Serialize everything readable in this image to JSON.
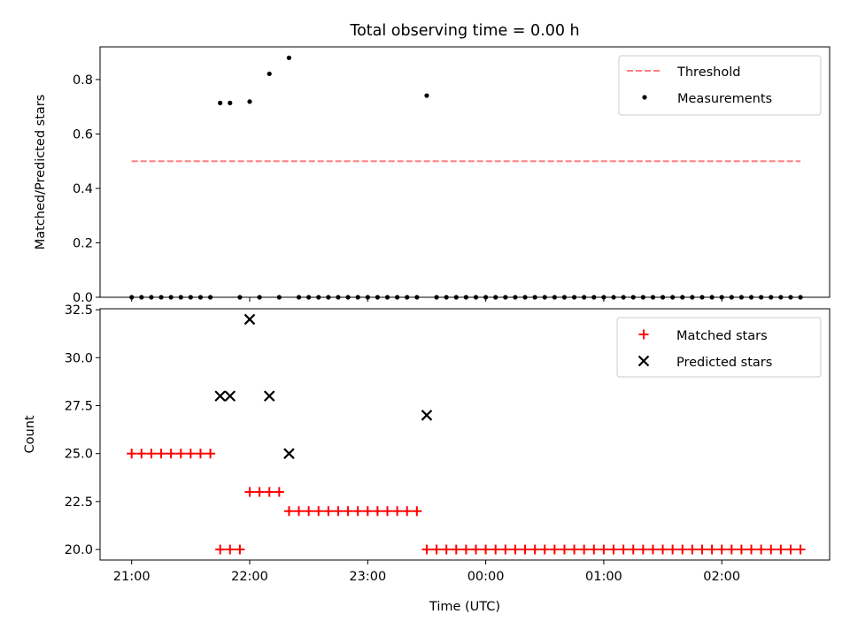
{
  "chart_data": [
    {
      "type": "scatter",
      "title": "Total observing time = 0.00 h",
      "ylabel": "Matched/Predicted stars",
      "xlabel": "",
      "x_unit": "time (UTC)",
      "xlim": [
        "20:52",
        "02:58"
      ],
      "ylim": [
        0,
        0.92
      ],
      "yticks": [
        "0.0",
        "0.2",
        "0.4",
        "0.6",
        "0.8"
      ],
      "xticks": [
        "21:00",
        "22:00",
        "23:00",
        "00:00",
        "01:00",
        "02:00"
      ],
      "legend_position": "upper right",
      "series": [
        {
          "name": "Threshold",
          "kind": "line",
          "style": "dashed",
          "color": "#ff7f7f",
          "x": [
            "21:00",
            "02:40"
          ],
          "y": [
            0.5,
            0.5
          ]
        },
        {
          "name": "Measurements",
          "kind": "scatter",
          "color": "#000000",
          "x": [
            "21:00",
            "21:05",
            "21:10",
            "21:15",
            "21:20",
            "21:25",
            "21:30",
            "21:35",
            "21:40",
            "21:45",
            "21:50",
            "21:55",
            "22:00",
            "22:05",
            "22:10",
            "22:15",
            "22:20",
            "22:25",
            "22:30",
            "22:35",
            "22:40",
            "22:45",
            "22:50",
            "22:55",
            "23:00",
            "23:05",
            "23:10",
            "23:15",
            "23:20",
            "23:25",
            "23:30",
            "23:35",
            "23:40",
            "23:45",
            "23:50",
            "23:55",
            "00:00",
            "00:05",
            "00:10",
            "00:15",
            "00:20",
            "00:25",
            "00:30",
            "00:35",
            "00:40",
            "00:45",
            "00:50",
            "00:55",
            "01:00",
            "01:05",
            "01:10",
            "01:15",
            "01:20",
            "01:25",
            "01:30",
            "01:35",
            "01:40",
            "01:45",
            "01:50",
            "01:55",
            "02:00",
            "02:05",
            "02:10",
            "02:15",
            "02:20",
            "02:25",
            "02:30",
            "02:35",
            "02:40"
          ],
          "y": [
            0,
            0,
            0,
            0,
            0,
            0,
            0,
            0,
            0,
            0.714,
            0.714,
            0,
            0.719,
            0,
            0.821,
            0,
            0.88,
            0,
            0,
            0,
            0,
            0,
            0,
            0,
            0,
            0,
            0,
            0,
            0,
            0,
            0.741,
            0,
            0,
            0,
            0,
            0,
            0,
            0,
            0,
            0,
            0,
            0,
            0,
            0,
            0,
            0,
            0,
            0,
            0,
            0,
            0,
            0,
            0,
            0,
            0,
            0,
            0,
            0,
            0,
            0,
            0,
            0,
            0,
            0,
            0,
            0,
            0,
            0,
            0
          ]
        }
      ]
    },
    {
      "type": "scatter",
      "title": "",
      "ylabel": "Count",
      "xlabel": "Time (UTC)",
      "xlim": [
        "20:52",
        "02:58"
      ],
      "ylim": [
        19.45,
        32.55
      ],
      "yticks": [
        "20.0",
        "22.5",
        "25.0",
        "27.5",
        "30.0",
        "32.5"
      ],
      "xticks": [
        "21:00",
        "22:00",
        "23:00",
        "00:00",
        "01:00",
        "02:00"
      ],
      "legend_position": "upper right",
      "series": [
        {
          "name": "Matched stars",
          "marker": "+",
          "color": "#ff0000",
          "x": [
            "21:00",
            "21:05",
            "21:10",
            "21:15",
            "21:20",
            "21:25",
            "21:30",
            "21:35",
            "21:40",
            "21:45",
            "21:50",
            "21:55",
            "22:00",
            "22:05",
            "22:10",
            "22:15",
            "22:20",
            "22:25",
            "22:30",
            "22:35",
            "22:40",
            "22:45",
            "22:50",
            "22:55",
            "23:00",
            "23:05",
            "23:10",
            "23:15",
            "23:20",
            "23:25",
            "23:30",
            "23:35",
            "23:40",
            "23:45",
            "23:50",
            "23:55",
            "00:00",
            "00:05",
            "00:10",
            "00:15",
            "00:20",
            "00:25",
            "00:30",
            "00:35",
            "00:40",
            "00:45",
            "00:50",
            "00:55",
            "01:00",
            "01:05",
            "01:10",
            "01:15",
            "01:20",
            "01:25",
            "01:30",
            "01:35",
            "01:40",
            "01:45",
            "01:50",
            "01:55",
            "02:00",
            "02:05",
            "02:10",
            "02:15",
            "02:20",
            "02:25",
            "02:30",
            "02:35",
            "02:40"
          ],
          "y": [
            25,
            25,
            25,
            25,
            25,
            25,
            25,
            25,
            25,
            20,
            20,
            20,
            23,
            23,
            23,
            23,
            22,
            22,
            22,
            22,
            22,
            22,
            22,
            22,
            22,
            22,
            22,
            22,
            22,
            22,
            20,
            20,
            20,
            20,
            20,
            20,
            20,
            20,
            20,
            20,
            20,
            20,
            20,
            20,
            20,
            20,
            20,
            20,
            20,
            20,
            20,
            20,
            20,
            20,
            20,
            20,
            20,
            20,
            20,
            20,
            20,
            20,
            20,
            20,
            20,
            20,
            20,
            20,
            20
          ]
        },
        {
          "name": "Predicted stars",
          "marker": "x",
          "color": "#000000",
          "x": [
            "21:45",
            "21:50",
            "22:00",
            "22:10",
            "22:20",
            "23:30"
          ],
          "y": [
            28,
            28,
            32,
            28,
            25,
            27
          ]
        }
      ]
    }
  ]
}
